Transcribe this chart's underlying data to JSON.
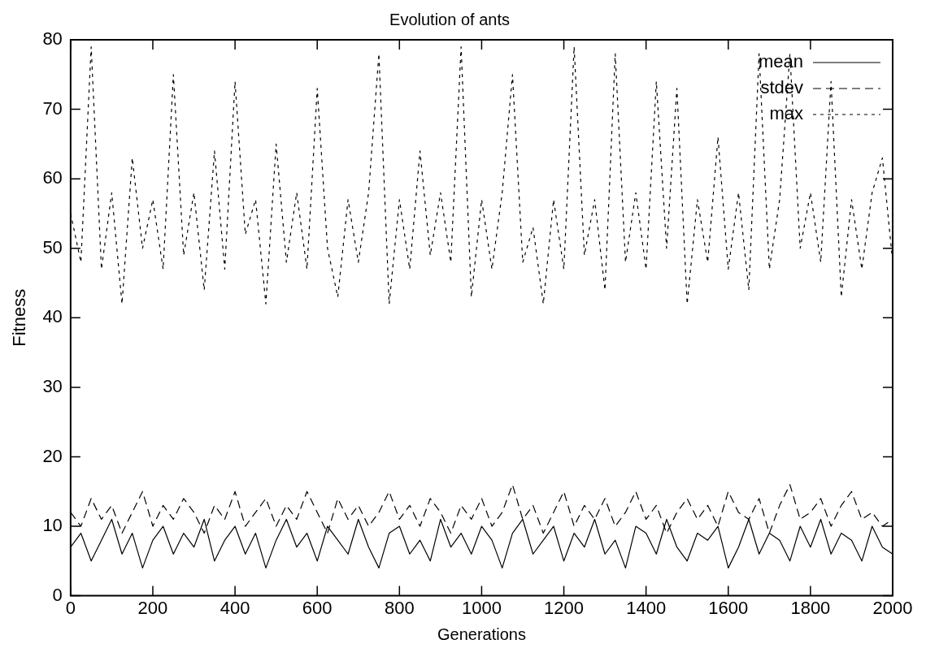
{
  "chart_data": {
    "type": "line",
    "title": "Evolution of ants",
    "xlabel": "Generations",
    "ylabel": "Fitness",
    "x": [
      0,
      25,
      50,
      75,
      100,
      125,
      150,
      175,
      200,
      225,
      250,
      275,
      300,
      325,
      350,
      375,
      400,
      425,
      450,
      475,
      500,
      525,
      550,
      575,
      600,
      625,
      650,
      675,
      700,
      725,
      750,
      775,
      800,
      825,
      850,
      875,
      900,
      925,
      950,
      975,
      1000,
      1025,
      1050,
      1075,
      1100,
      1125,
      1150,
      1175,
      1200,
      1225,
      1250,
      1275,
      1300,
      1325,
      1350,
      1375,
      1400,
      1425,
      1450,
      1475,
      1500,
      1525,
      1550,
      1575,
      1600,
      1625,
      1650,
      1675,
      1700,
      1725,
      1750,
      1775,
      1800,
      1825,
      1850,
      1875,
      1900,
      1925,
      1950,
      1975,
      2000
    ],
    "series": [
      {
        "name": "mean",
        "color": "#000000",
        "line_style": "solid",
        "values": [
          7,
          9,
          5,
          8,
          11,
          6,
          9,
          4,
          8,
          10,
          6,
          9,
          7,
          11,
          5,
          8,
          10,
          6,
          9,
          4,
          8,
          11,
          7,
          9,
          5,
          10,
          8,
          6,
          11,
          7,
          4,
          9,
          10,
          6,
          8,
          5,
          11,
          7,
          9,
          6,
          10,
          8,
          4,
          9,
          11,
          6,
          8,
          10,
          5,
          9,
          7,
          11,
          6,
          8,
          4,
          10,
          9,
          6,
          11,
          7,
          5,
          9,
          8,
          10,
          4,
          7,
          11,
          6,
          9,
          8,
          5,
          10,
          7,
          11,
          6,
          9,
          8,
          5,
          10,
          7,
          6
        ]
      },
      {
        "name": "stdev",
        "color": "#000000",
        "line_style": "dashed",
        "values": [
          12,
          10,
          14,
          11,
          13,
          9,
          12,
          15,
          10,
          13,
          11,
          14,
          12,
          9,
          13,
          11,
          15,
          10,
          12,
          14,
          10,
          13,
          11,
          15,
          12,
          9,
          14,
          11,
          13,
          10,
          12,
          15,
          11,
          13,
          10,
          14,
          12,
          9,
          13,
          11,
          14,
          10,
          12,
          16,
          11,
          13,
          9,
          12,
          15,
          10,
          13,
          11,
          14,
          10,
          12,
          15,
          11,
          13,
          9,
          12,
          14,
          11,
          13,
          10,
          15,
          12,
          11,
          14,
          9,
          13,
          16,
          11,
          12,
          14,
          10,
          13,
          15,
          11,
          12,
          10,
          11
        ]
      },
      {
        "name": "max",
        "color": "#000000",
        "line_style": "dotted",
        "values": [
          55,
          48,
          79,
          47,
          58,
          42,
          63,
          50,
          57,
          47,
          75,
          49,
          58,
          44,
          64,
          47,
          74,
          52,
          57,
          42,
          65,
          48,
          58,
          47,
          73,
          50,
          43,
          57,
          48,
          58,
          78,
          42,
          57,
          47,
          64,
          49,
          58,
          48,
          79,
          43,
          57,
          47,
          58,
          75,
          48,
          53,
          42,
          57,
          47,
          79,
          49,
          57,
          44,
          78,
          48,
          58,
          47,
          74,
          50,
          73,
          42,
          57,
          48,
          66,
          47,
          58,
          44,
          78,
          47,
          57,
          78,
          50,
          58,
          48,
          74,
          43,
          57,
          47,
          58,
          63,
          48
        ]
      }
    ],
    "xlim": [
      0,
      2000
    ],
    "xticks": [
      0,
      200,
      400,
      600,
      800,
      1000,
      1200,
      1400,
      1600,
      1800,
      2000
    ],
    "ylim": [
      0,
      80
    ],
    "yticks": [
      0,
      10,
      20,
      30,
      40,
      50,
      60,
      70,
      80
    ],
    "grid": false,
    "legend": "top right",
    "marker": "none"
  }
}
